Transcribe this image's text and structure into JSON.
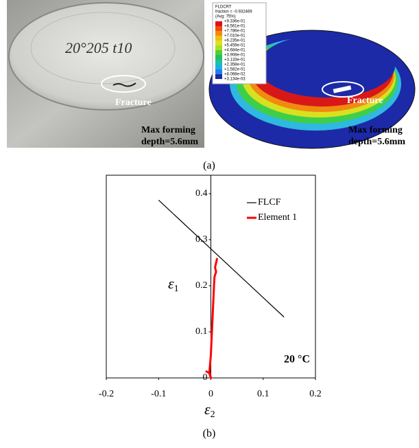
{
  "figure_a": {
    "photo": {
      "handwriting": "20°205 t10",
      "fracture_label": "Fracture",
      "depth_label": [
        "Max forming",
        "depth=5.6mm"
      ]
    },
    "simulation": {
      "legend_title": [
        "FLDCRT",
        "fraction = -0.932469",
        "(Avg: 75%)"
      ],
      "legend_values": [
        "+9.336e-01",
        "+8.561e-01",
        "+7.786e-01",
        "+7.010e-01",
        "+6.235e-01",
        "+5.459e-01",
        "+4.684e-01",
        "+3.908e-01",
        "+3.133e-01",
        "+2.358e-01",
        "+1.582e-01",
        "+8.068e-02",
        "+3.134e-03"
      ],
      "fracture_label": "Fracture",
      "depth_label": [
        "Max forming",
        "depth=5.6mm"
      ]
    },
    "caption": "(a)"
  },
  "chart_data": {
    "type": "line",
    "x_label": [
      "ε",
      "2"
    ],
    "y_label": [
      "ε",
      "1"
    ],
    "xlim": [
      -0.2,
      0.2
    ],
    "ylim": [
      0,
      0.44
    ],
    "xticks": [
      -0.2,
      -0.1,
      0,
      0.1,
      0.2
    ],
    "yticks": [
      0,
      0.1,
      0.2,
      0.3,
      0.4
    ],
    "legend": "upper right",
    "annotation": "20 °C",
    "series": [
      {
        "name": "FLCF",
        "color": "#000000",
        "x": [
          -0.1,
          0.14
        ],
        "values": [
          0.386,
          0.132
        ]
      },
      {
        "name": "Element 1",
        "color": "#ff0000",
        "x": [
          -0.01,
          -0.002,
          0,
          -0.003,
          0,
          0.002,
          0.004,
          0.006,
          0.007,
          0.01,
          0.008,
          0.012
        ],
        "values": [
          0.015,
          0.01,
          0,
          0.01,
          0.05,
          0.1,
          0.15,
          0.2,
          0.22,
          0.23,
          0.24,
          0.26
        ]
      }
    ]
  },
  "figure_b_caption": "(b)"
}
